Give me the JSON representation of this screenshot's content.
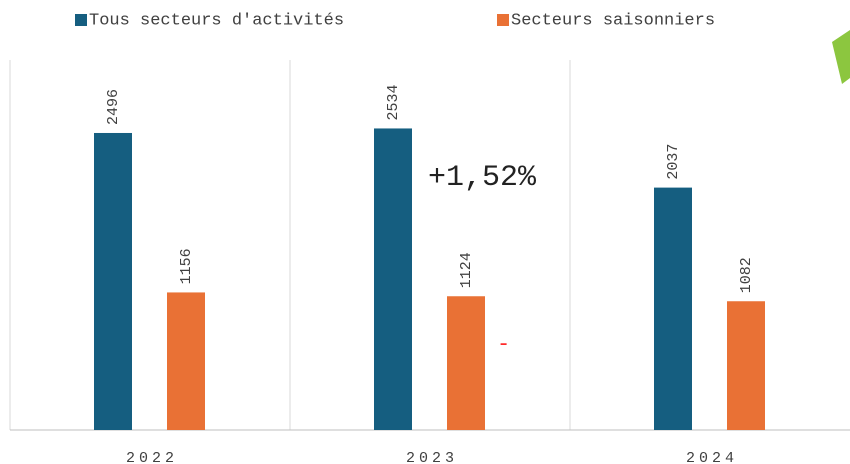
{
  "chart_data": {
    "type": "bar",
    "categories": [
      "2022",
      "2023",
      "2024"
    ],
    "series": [
      {
        "name": "Tous secteurs d'activités",
        "color": "#155e80",
        "values": [
          2496,
          2534,
          2037
        ]
      },
      {
        "name": "Secteurs saisonniers",
        "color": "#e97135",
        "values": [
          1156,
          1124,
          1082
        ]
      }
    ],
    "annotations": [
      {
        "text": "+1,52%",
        "color": "#222222"
      },
      {
        "text": "-",
        "color": "#ff2a2a"
      }
    ]
  }
}
